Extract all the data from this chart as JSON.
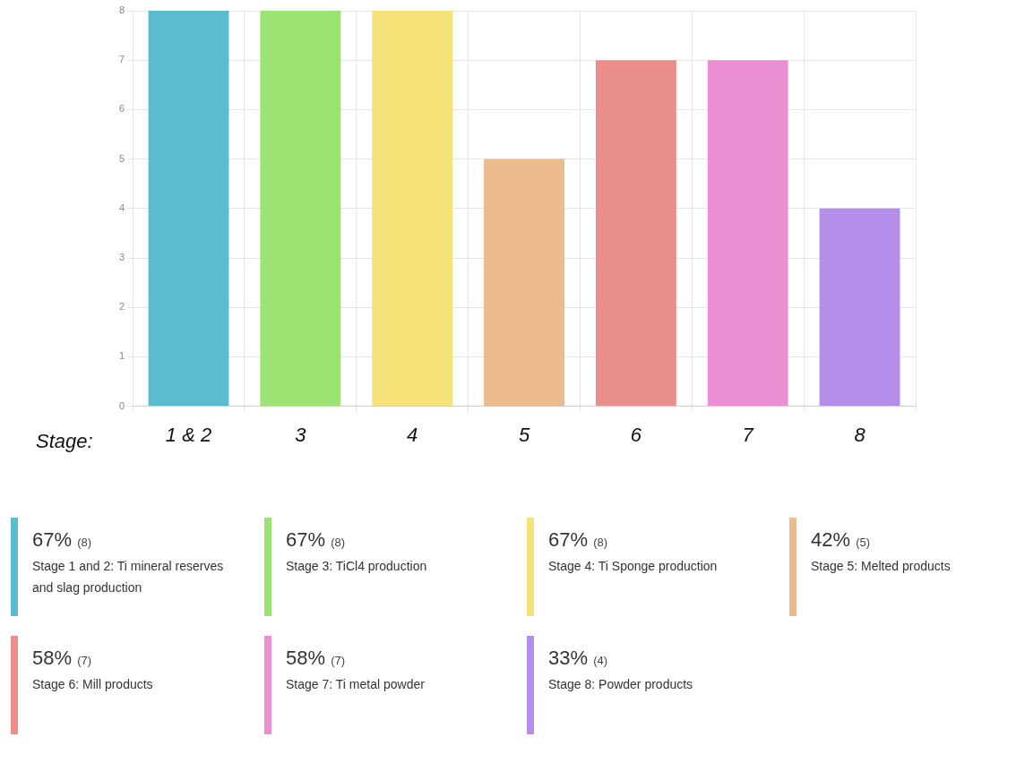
{
  "chart_data": {
    "type": "bar",
    "xlabel": "Stage:",
    "categories": [
      "1 & 2",
      "3",
      "4",
      "5",
      "6",
      "7",
      "8"
    ],
    "values": [
      8,
      8,
      8,
      5,
      7,
      7,
      4
    ],
    "colors": [
      "#5bbccf",
      "#9be372",
      "#f5e278",
      "#ebbb8e",
      "#e98e8c",
      "#eb8fd3",
      "#b48eea"
    ],
    "annotations": [
      "67% (8)",
      "Stage 1 and 2: Ti mineral reserves and slag production",
      "67% (8)",
      "Stage 3: TiCl4 production",
      "67% (8)",
      "Stage 4: Ti Sponge production",
      "42% (5)",
      "Stage 5: Melted products",
      "58% (7)",
      "Stage 6: Mill products",
      "58% (7)",
      "Stage 7: Ti metal powder",
      "33% (4)",
      "Stage 8: Powder products"
    ],
    "ylim": [
      0,
      8
    ],
    "yticks": [
      0,
      1,
      2,
      3,
      4,
      5,
      6,
      7,
      8
    ],
    "grid": true
  }
}
